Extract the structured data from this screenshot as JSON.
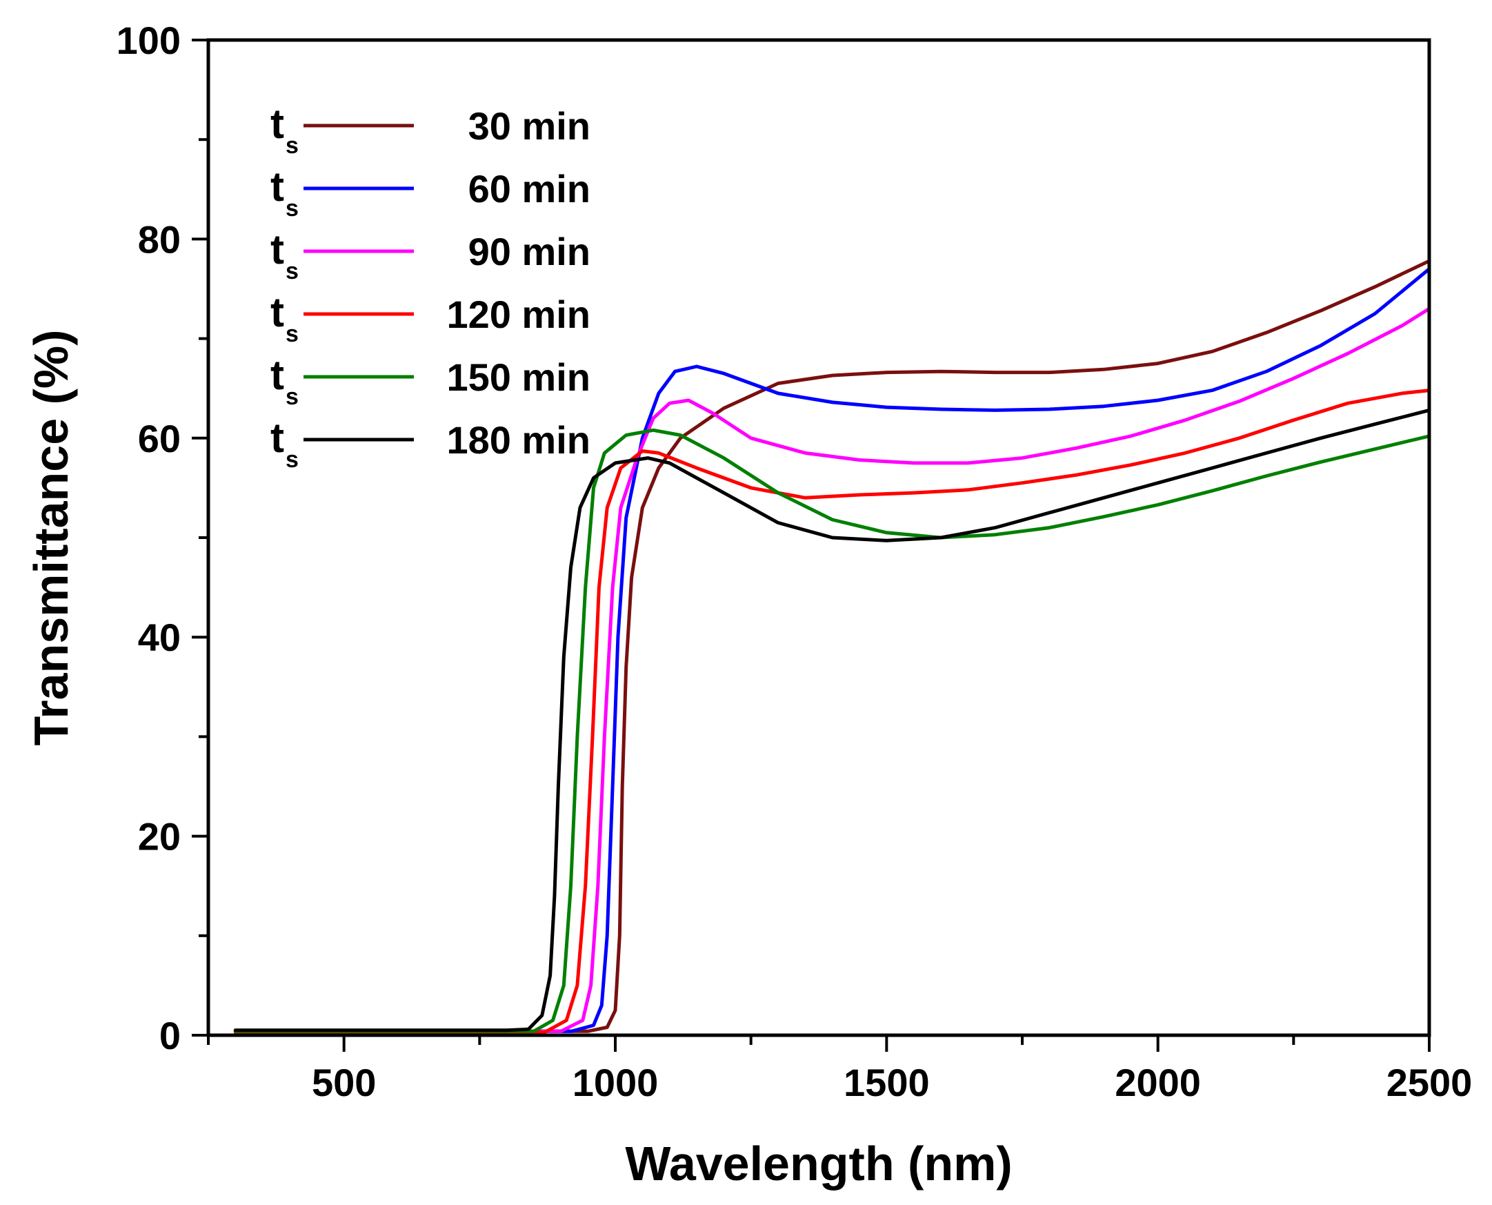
{
  "chart_data": {
    "type": "line",
    "xlabel": "Wavelength (nm)",
    "ylabel": "Transmittance (%)",
    "xlim": [
      250,
      2500
    ],
    "ylim": [
      0,
      100
    ],
    "xticks": [
      500,
      1000,
      1500,
      2000,
      2500
    ],
    "yticks": [
      0,
      20,
      40,
      60,
      80,
      100
    ],
    "x_minor_step": 250,
    "y_minor_step": 10,
    "grid": false,
    "legend_position": "top-left",
    "legend_prefix": "t",
    "legend_subscript": "s",
    "series": [
      {
        "name": "30 min",
        "color": "#7a0f0f",
        "points": [
          [
            300,
            0.4
          ],
          [
            800,
            0.4
          ],
          [
            950,
            0.4
          ],
          [
            985,
            0.8
          ],
          [
            1000,
            2.5
          ],
          [
            1008,
            10
          ],
          [
            1013,
            25
          ],
          [
            1020,
            37
          ],
          [
            1030,
            46
          ],
          [
            1050,
            53
          ],
          [
            1080,
            57
          ],
          [
            1120,
            60
          ],
          [
            1200,
            63
          ],
          [
            1300,
            65.5
          ],
          [
            1400,
            66.3
          ],
          [
            1500,
            66.6
          ],
          [
            1600,
            66.7
          ],
          [
            1700,
            66.6
          ],
          [
            1800,
            66.6
          ],
          [
            1900,
            66.9
          ],
          [
            2000,
            67.5
          ],
          [
            2100,
            68.7
          ],
          [
            2200,
            70.6
          ],
          [
            2300,
            72.8
          ],
          [
            2400,
            75.2
          ],
          [
            2500,
            77.8
          ]
        ]
      },
      {
        "name": "60 min",
        "color": "#0000ff",
        "points": [
          [
            300,
            0.4
          ],
          [
            800,
            0.4
          ],
          [
            920,
            0.4
          ],
          [
            960,
            1
          ],
          [
            975,
            3
          ],
          [
            985,
            10
          ],
          [
            995,
            25
          ],
          [
            1005,
            40
          ],
          [
            1020,
            52
          ],
          [
            1050,
            60
          ],
          [
            1080,
            64.5
          ],
          [
            1110,
            66.7
          ],
          [
            1150,
            67.2
          ],
          [
            1200,
            66.5
          ],
          [
            1300,
            64.5
          ],
          [
            1400,
            63.6
          ],
          [
            1500,
            63.1
          ],
          [
            1600,
            62.9
          ],
          [
            1700,
            62.8
          ],
          [
            1800,
            62.9
          ],
          [
            1900,
            63.2
          ],
          [
            2000,
            63.8
          ],
          [
            2100,
            64.8
          ],
          [
            2200,
            66.7
          ],
          [
            2300,
            69.3
          ],
          [
            2400,
            72.5
          ],
          [
            2500,
            77
          ]
        ]
      },
      {
        "name": "90 min",
        "color": "#ff00ff",
        "points": [
          [
            300,
            0.4
          ],
          [
            800,
            0.4
          ],
          [
            900,
            0.4
          ],
          [
            940,
            1.5
          ],
          [
            955,
            5
          ],
          [
            968,
            15
          ],
          [
            980,
            30
          ],
          [
            995,
            45
          ],
          [
            1010,
            53
          ],
          [
            1040,
            58
          ],
          [
            1070,
            62
          ],
          [
            1100,
            63.5
          ],
          [
            1135,
            63.8
          ],
          [
            1180,
            62.5
          ],
          [
            1250,
            60
          ],
          [
            1350,
            58.5
          ],
          [
            1450,
            57.8
          ],
          [
            1550,
            57.5
          ],
          [
            1650,
            57.5
          ],
          [
            1750,
            58
          ],
          [
            1850,
            59
          ],
          [
            1950,
            60.2
          ],
          [
            2050,
            61.8
          ],
          [
            2150,
            63.7
          ],
          [
            2250,
            66
          ],
          [
            2350,
            68.5
          ],
          [
            2450,
            71.3
          ],
          [
            2500,
            73
          ]
        ]
      },
      {
        "name": "120 min",
        "color": "#ff0000",
        "points": [
          [
            300,
            0.3
          ],
          [
            800,
            0.3
          ],
          [
            870,
            0.3
          ],
          [
            910,
            1.5
          ],
          [
            930,
            5
          ],
          [
            945,
            15
          ],
          [
            958,
            30
          ],
          [
            970,
            45
          ],
          [
            985,
            53
          ],
          [
            1010,
            57
          ],
          [
            1050,
            58.7
          ],
          [
            1080,
            58.5
          ],
          [
            1150,
            57
          ],
          [
            1250,
            55
          ],
          [
            1350,
            54
          ],
          [
            1450,
            54.3
          ],
          [
            1550,
            54.5
          ],
          [
            1650,
            54.8
          ],
          [
            1750,
            55.5
          ],
          [
            1850,
            56.3
          ],
          [
            1950,
            57.3
          ],
          [
            2050,
            58.5
          ],
          [
            2150,
            60
          ],
          [
            2250,
            61.8
          ],
          [
            2350,
            63.5
          ],
          [
            2450,
            64.5
          ],
          [
            2500,
            64.8
          ]
        ]
      },
      {
        "name": "150 min",
        "color": "#008000",
        "points": [
          [
            300,
            0.4
          ],
          [
            800,
            0.4
          ],
          [
            850,
            0.4
          ],
          [
            885,
            1.5
          ],
          [
            905,
            5
          ],
          [
            918,
            15
          ],
          [
            930,
            30
          ],
          [
            945,
            45
          ],
          [
            960,
            55
          ],
          [
            980,
            58.5
          ],
          [
            1020,
            60.3
          ],
          [
            1070,
            60.8
          ],
          [
            1120,
            60.3
          ],
          [
            1200,
            58
          ],
          [
            1300,
            54.5
          ],
          [
            1400,
            51.8
          ],
          [
            1500,
            50.5
          ],
          [
            1600,
            50
          ],
          [
            1700,
            50.3
          ],
          [
            1800,
            51
          ],
          [
            1900,
            52.1
          ],
          [
            2000,
            53.3
          ],
          [
            2100,
            54.7
          ],
          [
            2200,
            56.2
          ],
          [
            2300,
            57.6
          ],
          [
            2400,
            58.9
          ],
          [
            2500,
            60.2
          ]
        ]
      },
      {
        "name": "180 min",
        "color": "#000000",
        "points": [
          [
            300,
            0.5
          ],
          [
            800,
            0.5
          ],
          [
            840,
            0.6
          ],
          [
            865,
            2
          ],
          [
            880,
            6
          ],
          [
            888,
            14
          ],
          [
            895,
            25
          ],
          [
            905,
            38
          ],
          [
            918,
            47
          ],
          [
            935,
            53
          ],
          [
            960,
            56
          ],
          [
            1000,
            57.5
          ],
          [
            1060,
            58
          ],
          [
            1100,
            57.5
          ],
          [
            1200,
            54.5
          ],
          [
            1300,
            51.5
          ],
          [
            1400,
            50
          ],
          [
            1500,
            49.7
          ],
          [
            1600,
            50
          ],
          [
            1700,
            51
          ],
          [
            1800,
            52.5
          ],
          [
            1900,
            54
          ],
          [
            2000,
            55.5
          ],
          [
            2100,
            57
          ],
          [
            2200,
            58.5
          ],
          [
            2300,
            60
          ],
          [
            2400,
            61.4
          ],
          [
            2500,
            62.8
          ]
        ]
      }
    ]
  }
}
